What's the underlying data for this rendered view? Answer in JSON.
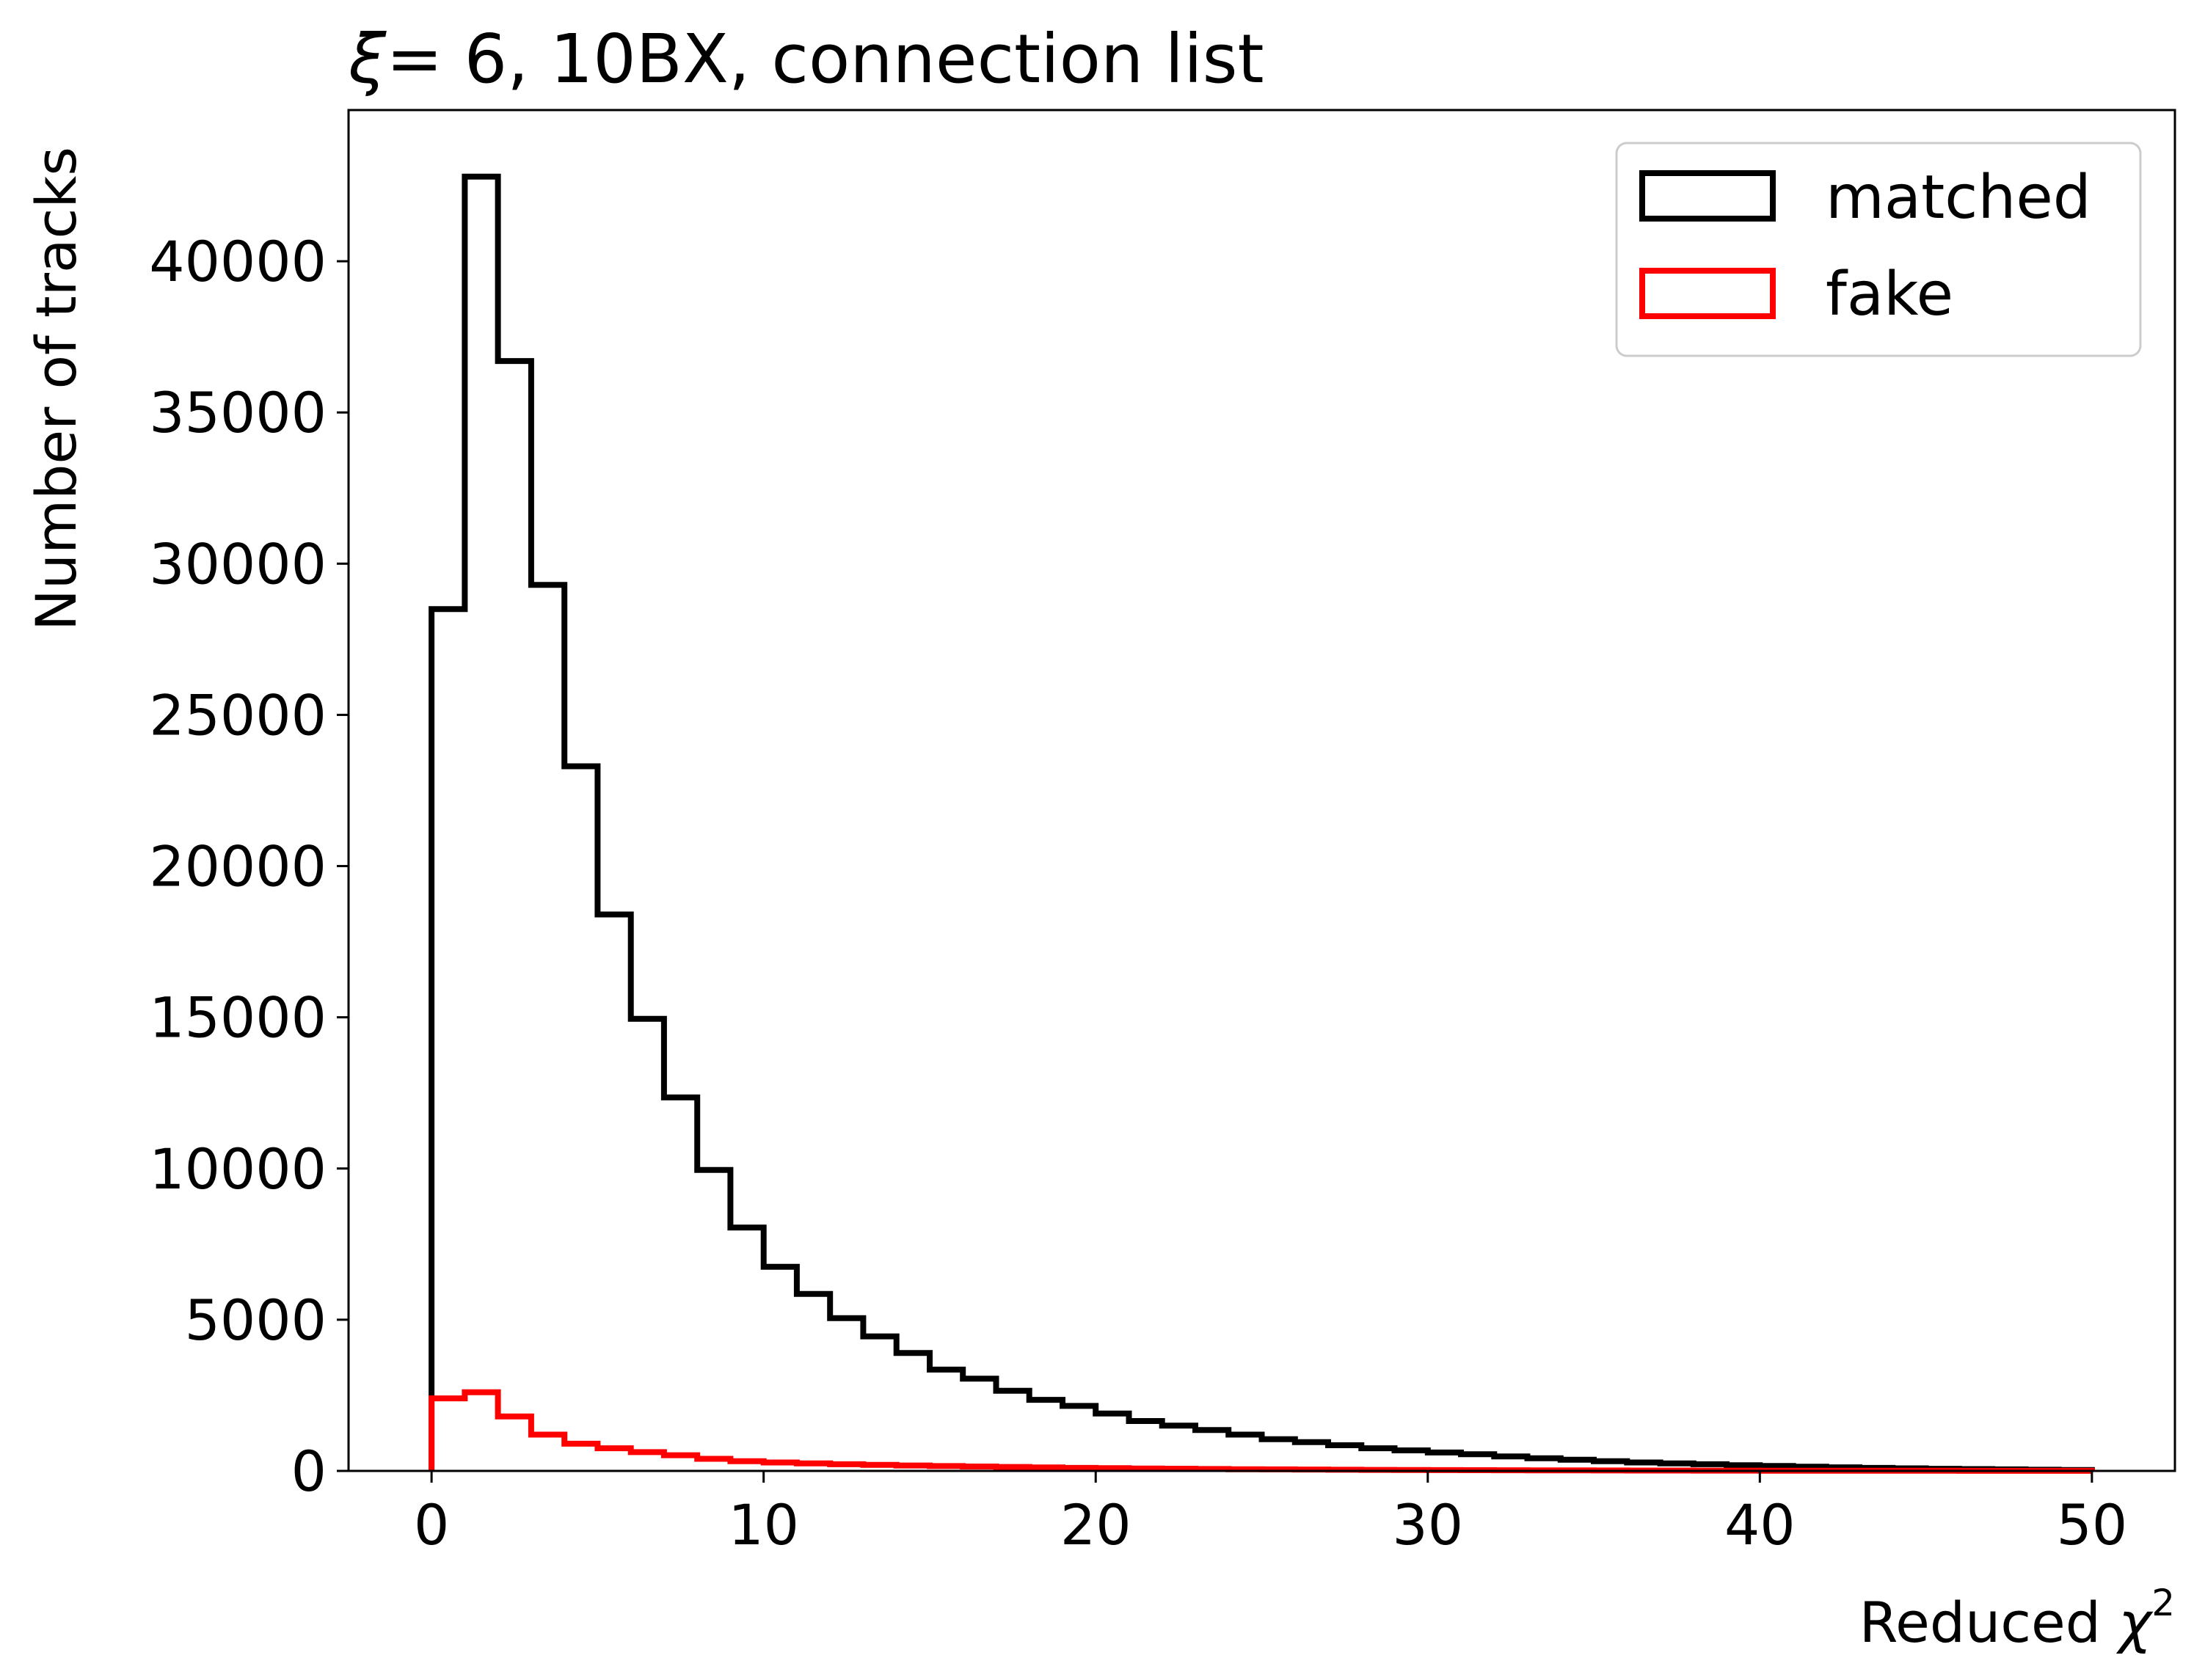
{
  "chart_data": {
    "type": "histogram",
    "title_symbol": "ξ",
    "title_rest": "= 6, 10BX, connection list",
    "xlabel_text": "Reduced ",
    "xlabel_symbol": "χ",
    "xlabel_sup": "2",
    "ylabel": "Number of tracks",
    "xlim": [
      -2.5,
      52.5
    ],
    "ylim": [
      0,
      45000
    ],
    "xticks": [
      0,
      10,
      20,
      30,
      40,
      50
    ],
    "yticks": [
      0,
      5000,
      10000,
      15000,
      20000,
      25000,
      30000,
      35000,
      40000
    ],
    "legend_position": "upper right",
    "bin_edges": [
      0,
      1,
      2,
      3,
      4,
      5,
      6,
      7,
      8,
      9,
      10,
      11,
      12,
      13,
      14,
      15,
      16,
      17,
      18,
      19,
      20,
      21,
      22,
      23,
      24,
      25,
      26,
      27,
      28,
      29,
      30,
      31,
      32,
      33,
      34,
      35,
      36,
      37,
      38,
      39,
      40,
      41,
      42,
      43,
      44,
      45,
      46,
      47,
      48,
      49,
      50
    ],
    "series": [
      {
        "name": "matched",
        "color": "#000000",
        "values": [
          28500,
          42800,
          36700,
          29300,
          23300,
          18400,
          14950,
          12350,
          9950,
          8050,
          6750,
          5850,
          5050,
          4450,
          3900,
          3350,
          3050,
          2650,
          2350,
          2150,
          1900,
          1650,
          1500,
          1350,
          1200,
          1050,
          950,
          850,
          750,
          680,
          610,
          550,
          480,
          420,
          370,
          320,
          280,
          250,
          220,
          190,
          165,
          140,
          120,
          100,
          85,
          70,
          60,
          50,
          40,
          30
        ]
      },
      {
        "name": "fake",
        "color": "#ff0000",
        "values": [
          2400,
          2600,
          1800,
          1200,
          900,
          750,
          620,
          520,
          400,
          320,
          280,
          250,
          220,
          200,
          180,
          160,
          145,
          130,
          115,
          100,
          90,
          80,
          72,
          64,
          57,
          50,
          45,
          40,
          35,
          31,
          27,
          24,
          21,
          18,
          16,
          14,
          12,
          11,
          10,
          9,
          8,
          7,
          6,
          5,
          4,
          4,
          3,
          3,
          2,
          2
        ]
      }
    ]
  }
}
